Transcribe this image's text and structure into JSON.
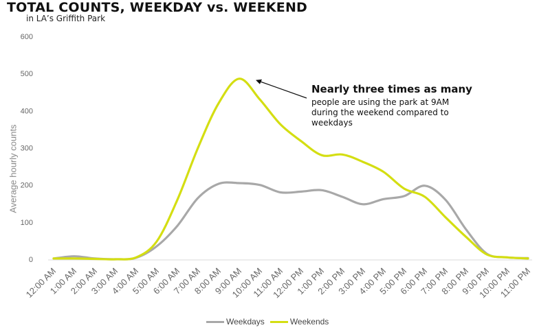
{
  "chart_data": {
    "type": "line",
    "title": "TOTAL COUNTS, WEEKDAY vs. WEEKEND",
    "subtitle": "in LA’s Griffith Park",
    "ylabel": "Average hourly counts",
    "xlabel": "",
    "ylim": [
      0,
      600
    ],
    "yticks": [
      0,
      100,
      200,
      300,
      400,
      500,
      600
    ],
    "categories": [
      "12:00 AM",
      "1:00 AM",
      "2:00 AM",
      "3:00 AM",
      "4:00 AM",
      "5:00 AM",
      "6:00 AM",
      "7:00 AM",
      "8:00 AM",
      "9:00 AM",
      "10:00 AM",
      "11:00 AM",
      "12:00 PM",
      "1:00 PM",
      "2:00 PM",
      "3:00 PM",
      "4:00 PM",
      "5:00 PM",
      "6:00 PM",
      "7:00 PM",
      "8:00 PM",
      "9:00 PM",
      "10:00 PM",
      "11:00 PM"
    ],
    "series": [
      {
        "name": "Weekdays",
        "color": "#a8a8a8",
        "values": [
          2,
          8,
          2,
          0,
          4,
          35,
          90,
          165,
          203,
          205,
          200,
          180,
          182,
          186,
          168,
          148,
          162,
          170,
          198,
          160,
          80,
          15,
          5,
          3
        ]
      },
      {
        "name": "Weekends",
        "color": "#d4de12",
        "values": [
          2,
          2,
          1,
          0,
          5,
          48,
          160,
          300,
          420,
          486,
          430,
          363,
          318,
          280,
          282,
          262,
          235,
          190,
          168,
          113,
          60,
          13,
          5,
          2
        ]
      }
    ],
    "grid": false,
    "legend_position": "bottom",
    "annotation": {
      "title": "Nearly three times as many",
      "lines": [
        "people are using the park at 9AM",
        "during the weekend compared to",
        "weekdays"
      ],
      "points_to": "9:00 AM"
    }
  }
}
